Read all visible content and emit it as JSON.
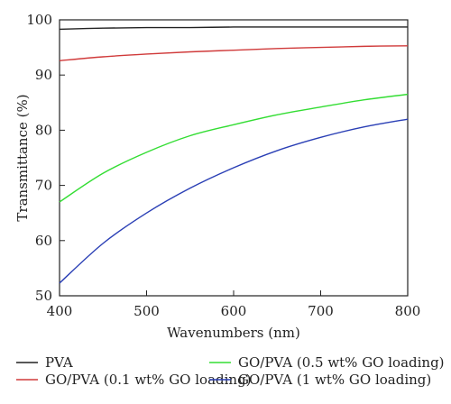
{
  "chart_data": {
    "type": "line",
    "xlabel": "Wavenumbers (nm)",
    "ylabel": "Transmittance (%)",
    "xlim": [
      400,
      800
    ],
    "ylim": [
      50,
      100
    ],
    "xticks": [
      400,
      500,
      600,
      700,
      800
    ],
    "yticks": [
      50,
      60,
      70,
      80,
      90,
      100
    ],
    "grid": false,
    "legend_position": "bottom",
    "x": [
      400,
      450,
      500,
      550,
      600,
      650,
      700,
      750,
      800
    ],
    "series": [
      {
        "name": "PVA",
        "color": "#222222",
        "values": [
          98.3,
          98.5,
          98.6,
          98.6,
          98.7,
          98.7,
          98.7,
          98.7,
          98.7
        ]
      },
      {
        "name": "GO/PVA (0.1 wt% GO loading)",
        "color": "#d03a3a",
        "values": [
          92.6,
          93.3,
          93.8,
          94.2,
          94.5,
          94.8,
          95.0,
          95.2,
          95.3
        ]
      },
      {
        "name": "GO/PVA (0.5 wt% GO loading)",
        "color": "#33dd33",
        "values": [
          67.0,
          72.2,
          76.0,
          79.0,
          81.0,
          82.8,
          84.2,
          85.5,
          86.5
        ]
      },
      {
        "name": "GO/PVA (1 wt% GO loading)",
        "color": "#2a3fb5",
        "values": [
          52.3,
          59.5,
          65.0,
          69.5,
          73.2,
          76.3,
          78.7,
          80.6,
          82.0
        ]
      }
    ]
  }
}
